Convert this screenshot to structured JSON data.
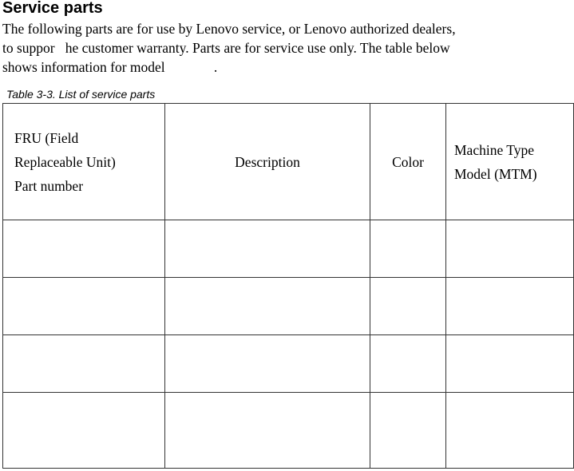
{
  "title": "Service parts",
  "paragraph": [
    "The following parts are for use by Lenovo service, or Lenovo authorized dealers,",
    "to suppor   he customer warranty. Parts are for service use only. The table below",
    "shows information for model              ."
  ],
  "caption": "Table 3-3. List of service parts",
  "table": {
    "headers": [
      [
        "FRU (Field",
        "Replaceable Unit)",
        "Part  number"
      ],
      "Description",
      "Color",
      [
        "Machine Type",
        "Model  (MTM)"
      ]
    ],
    "rows": [
      [
        "",
        "",
        "",
        ""
      ],
      [
        "",
        "",
        "",
        ""
      ],
      [
        "",
        "",
        "",
        ""
      ],
      [
        "",
        "",
        "",
        ""
      ]
    ]
  }
}
